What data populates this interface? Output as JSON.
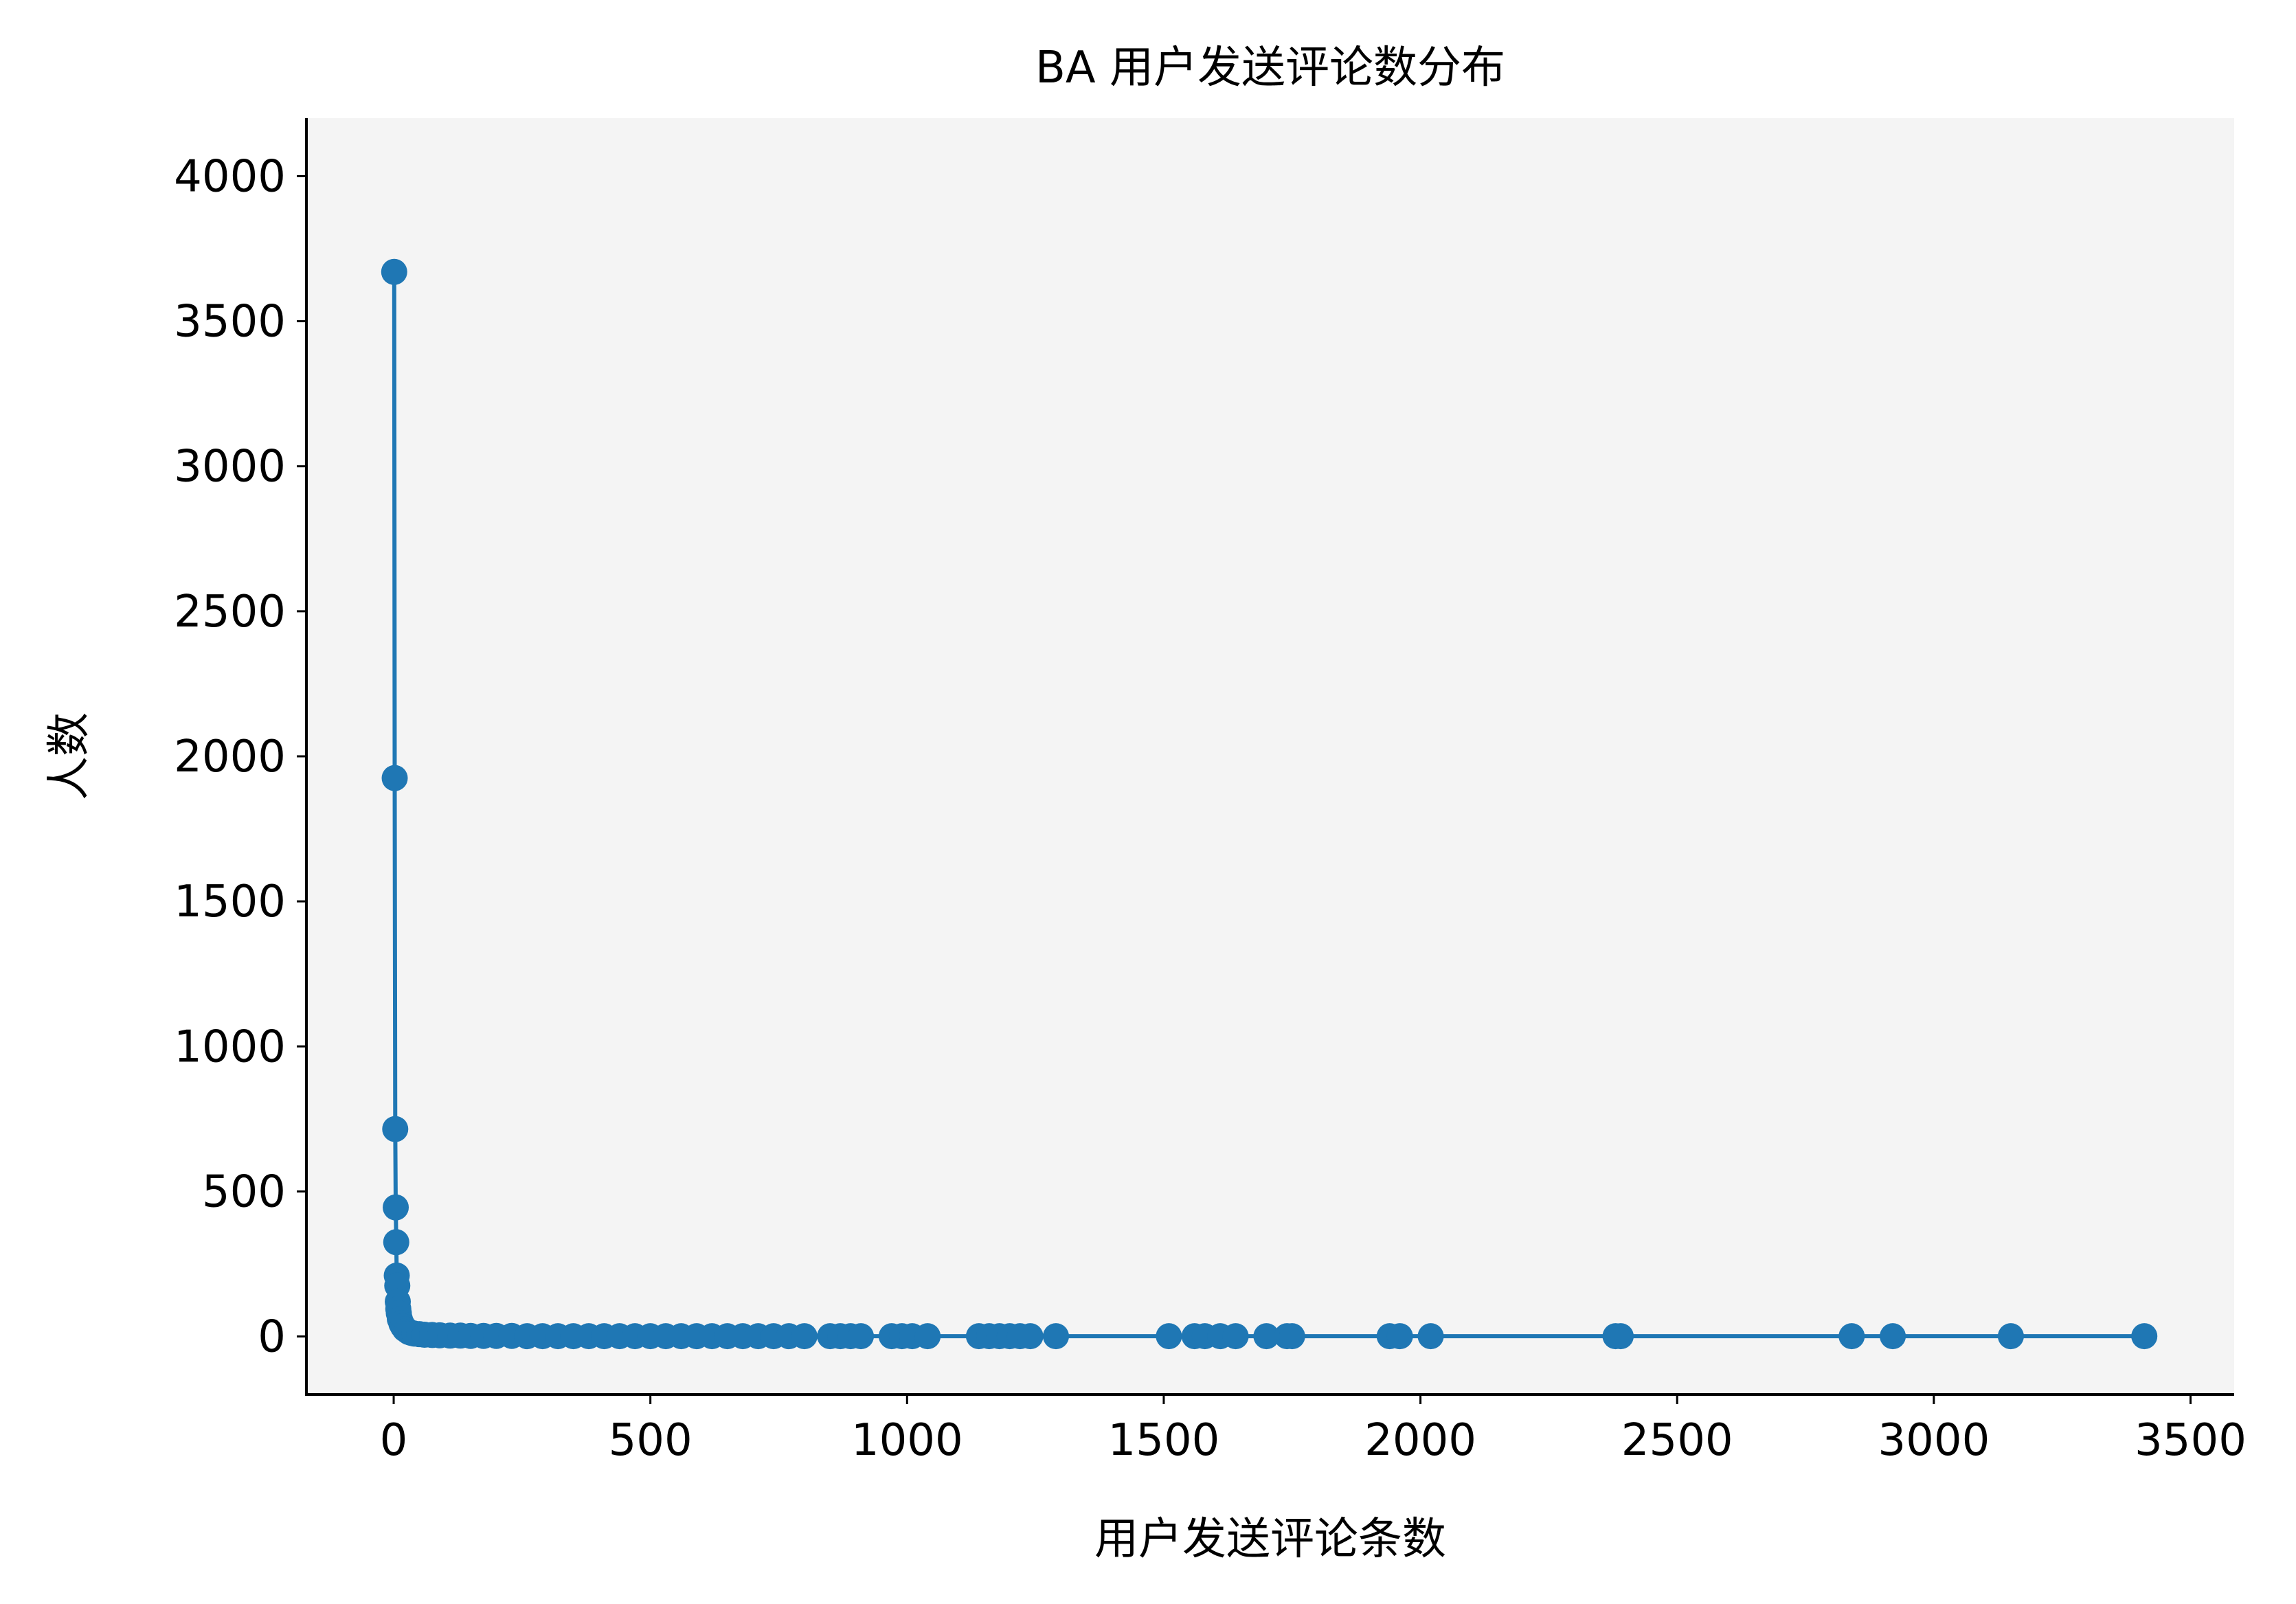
{
  "chart_data": {
    "type": "line",
    "title": "BA 用户发送评论数分布",
    "xlabel": "用户发送评论条数",
    "ylabel": "人数",
    "xlim": [
      -170,
      3585
    ],
    "ylim": [
      -200,
      4200
    ],
    "xticks": [
      0,
      500,
      1000,
      1500,
      2000,
      2500,
      3000,
      3500
    ],
    "yticks": [
      0,
      500,
      1000,
      1500,
      2000,
      2500,
      3000,
      3500,
      4000
    ],
    "grid": false,
    "legend": "none",
    "colors": {
      "series": "#1f77b4",
      "plot_background": "#f4f4f4",
      "axis": "#000000"
    },
    "series": [
      {
        "marker": "circle",
        "x": [
          1,
          2,
          3,
          4,
          5,
          6,
          7,
          8,
          9,
          10,
          12,
          15,
          18,
          22,
          26,
          30,
          35,
          40,
          50,
          60,
          75,
          90,
          110,
          130,
          150,
          175,
          200,
          230,
          260,
          290,
          320,
          350,
          380,
          410,
          440,
          470,
          500,
          530,
          560,
          590,
          620,
          650,
          680,
          710,
          740,
          770,
          800,
          850,
          870,
          890,
          910,
          970,
          990,
          1010,
          1040,
          1140,
          1160,
          1180,
          1200,
          1220,
          1240,
          1290,
          1510,
          1560,
          1580,
          1610,
          1640,
          1700,
          1740,
          1750,
          1940,
          1960,
          2020,
          2380,
          2390,
          2840,
          2920,
          3150,
          3410
        ],
        "y": [
          3670,
          1925,
          715,
          445,
          325,
          210,
          175,
          120,
          95,
          80,
          60,
          45,
          35,
          25,
          20,
          15,
          12,
          10,
          8,
          6,
          5,
          4,
          3,
          3,
          2,
          2,
          2,
          2,
          1,
          1,
          1,
          1,
          1,
          1,
          1,
          1,
          1,
          1,
          1,
          1,
          1,
          1,
          1,
          1,
          1,
          1,
          1,
          1,
          1,
          1,
          1,
          1,
          1,
          1,
          1,
          1,
          1,
          1,
          1,
          1,
          1,
          1,
          1,
          1,
          1,
          1,
          1,
          1,
          1,
          1,
          1,
          1,
          1,
          1,
          1,
          1,
          1,
          1,
          1
        ]
      }
    ]
  }
}
